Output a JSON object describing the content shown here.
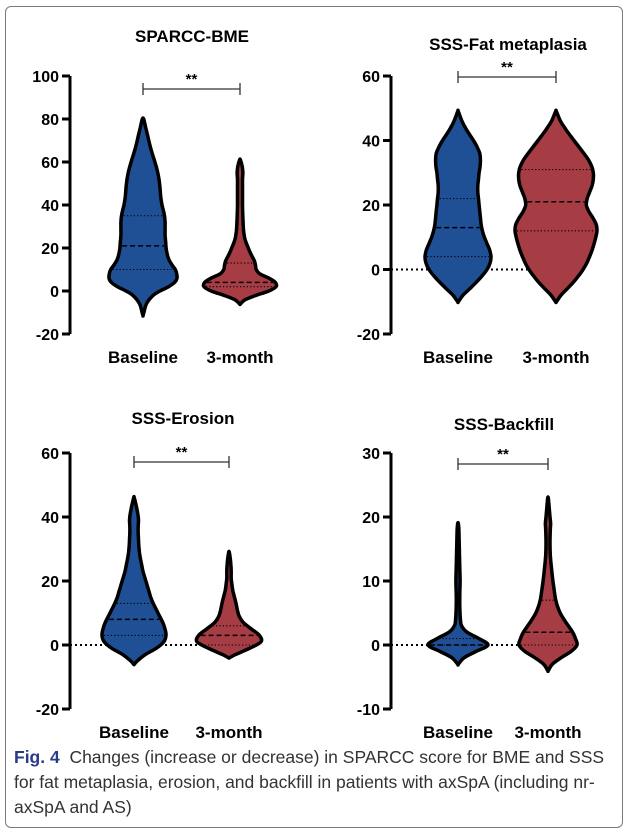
{
  "figure": {
    "caption_label": "Fig. 4",
    "caption_text": "Changes (increase or decrease) in SPARCC score for BME and SSS for fat metaplasia, erosion, and backfill in patients with axSpA (including nr-axSpA and AS)"
  },
  "colors": {
    "baseline": "#1f5096",
    "three_month": "#a63c44",
    "outline": "#000000"
  },
  "chart_data": [
    {
      "type": "violin",
      "title": "SPARCC-BME",
      "categories": [
        "Baseline",
        "3-month"
      ],
      "ylim": [
        -20,
        100
      ],
      "yticks": [
        -20,
        0,
        20,
        40,
        60,
        80,
        100
      ],
      "significance": "**",
      "zero_line": false,
      "series": [
        {
          "category": "Baseline",
          "min": -11,
          "max": 80,
          "q1": 10,
          "median": 21,
          "q3": 35,
          "density": [
            [
              -11,
              0.01
            ],
            [
              -6,
              0.1
            ],
            [
              -2,
              0.3
            ],
            [
              0,
              0.5
            ],
            [
              2,
              0.75
            ],
            [
              4,
              0.93
            ],
            [
              6,
              1.0
            ],
            [
              8,
              0.99
            ],
            [
              10,
              0.95
            ],
            [
              12,
              0.86
            ],
            [
              14,
              0.78
            ],
            [
              16,
              0.73
            ],
            [
              18,
              0.7
            ],
            [
              20,
              0.68
            ],
            [
              22,
              0.67
            ],
            [
              24,
              0.66
            ],
            [
              26,
              0.65
            ],
            [
              28,
              0.65
            ],
            [
              30,
              0.65
            ],
            [
              32,
              0.65
            ],
            [
              34,
              0.64
            ],
            [
              36,
              0.62
            ],
            [
              38,
              0.59
            ],
            [
              40,
              0.56
            ],
            [
              44,
              0.52
            ],
            [
              48,
              0.5
            ],
            [
              52,
              0.47
            ],
            [
              56,
              0.42
            ],
            [
              60,
              0.35
            ],
            [
              64,
              0.27
            ],
            [
              68,
              0.2
            ],
            [
              72,
              0.14
            ],
            [
              76,
              0.08
            ],
            [
              80,
              0.02
            ]
          ]
        },
        {
          "category": "3-month",
          "min": -6,
          "max": 61,
          "q1": 2,
          "median": 4,
          "q3": 13,
          "density": [
            [
              -6,
              0.01
            ],
            [
              -4,
              0.15
            ],
            [
              -2,
              0.45
            ],
            [
              0,
              0.8
            ],
            [
              2,
              1.0
            ],
            [
              4,
              0.98
            ],
            [
              6,
              0.8
            ],
            [
              8,
              0.55
            ],
            [
              10,
              0.45
            ],
            [
              12,
              0.43
            ],
            [
              14,
              0.4
            ],
            [
              16,
              0.34
            ],
            [
              18,
              0.28
            ],
            [
              20,
              0.23
            ],
            [
              24,
              0.14
            ],
            [
              28,
              0.1
            ],
            [
              34,
              0.08
            ],
            [
              40,
              0.07
            ],
            [
              46,
              0.07
            ],
            [
              52,
              0.07
            ],
            [
              55,
              0.08
            ],
            [
              58,
              0.06
            ],
            [
              61,
              0.01
            ]
          ]
        }
      ]
    },
    {
      "type": "violin",
      "title": "SSS-Fat metaplasia",
      "categories": [
        "Baseline",
        "3-month"
      ],
      "ylim": [
        -20,
        60
      ],
      "yticks": [
        -20,
        0,
        20,
        40,
        60
      ],
      "significance": "**",
      "zero_line": true,
      "series": [
        {
          "category": "Baseline",
          "min": -10,
          "max": 49,
          "q1": 4,
          "median": 13,
          "q3": 22,
          "density": [
            [
              -10,
              0.01
            ],
            [
              -8,
              0.15
            ],
            [
              -6,
              0.35
            ],
            [
              -4,
              0.55
            ],
            [
              -2,
              0.73
            ],
            [
              0,
              0.88
            ],
            [
              2,
              0.97
            ],
            [
              4,
              1.0
            ],
            [
              6,
              0.96
            ],
            [
              8,
              0.88
            ],
            [
              10,
              0.8
            ],
            [
              12,
              0.74
            ],
            [
              14,
              0.7
            ],
            [
              16,
              0.68
            ],
            [
              18,
              0.66
            ],
            [
              20,
              0.64
            ],
            [
              22,
              0.62
            ],
            [
              24,
              0.6
            ],
            [
              26,
              0.6
            ],
            [
              28,
              0.62
            ],
            [
              30,
              0.64
            ],
            [
              32,
              0.67
            ],
            [
              34,
              0.68
            ],
            [
              36,
              0.66
            ],
            [
              38,
              0.58
            ],
            [
              40,
              0.47
            ],
            [
              42,
              0.34
            ],
            [
              44,
              0.22
            ],
            [
              46,
              0.12
            ],
            [
              49,
              0.01
            ]
          ]
        },
        {
          "category": "3-month",
          "min": -10,
          "max": 49,
          "q1": 12,
          "median": 21,
          "q3": 31,
          "density": [
            [
              -10,
              0.01
            ],
            [
              -8,
              0.12
            ],
            [
              -6,
              0.27
            ],
            [
              -4,
              0.42
            ],
            [
              -2,
              0.55
            ],
            [
              0,
              0.66
            ],
            [
              2,
              0.75
            ],
            [
              4,
              0.82
            ],
            [
              6,
              0.88
            ],
            [
              8,
              0.93
            ],
            [
              10,
              0.97
            ],
            [
              12,
              1.0
            ],
            [
              14,
              0.98
            ],
            [
              16,
              0.9
            ],
            [
              18,
              0.8
            ],
            [
              20,
              0.74
            ],
            [
              22,
              0.76
            ],
            [
              24,
              0.82
            ],
            [
              26,
              0.88
            ],
            [
              28,
              0.91
            ],
            [
              30,
              0.91
            ],
            [
              32,
              0.87
            ],
            [
              34,
              0.79
            ],
            [
              36,
              0.68
            ],
            [
              38,
              0.56
            ],
            [
              40,
              0.44
            ],
            [
              42,
              0.32
            ],
            [
              44,
              0.21
            ],
            [
              46,
              0.11
            ],
            [
              49,
              0.01
            ]
          ]
        }
      ]
    },
    {
      "type": "violin",
      "title": "SSS-Erosion",
      "categories": [
        "Baseline",
        "3-month"
      ],
      "ylim": [
        -20,
        60
      ],
      "yticks": [
        -20,
        0,
        20,
        40,
        60
      ],
      "significance": "**",
      "zero_line": true,
      "series": [
        {
          "category": "Baseline",
          "min": -6,
          "max": 46,
          "q1": 3,
          "median": 8,
          "q3": 13,
          "density": [
            [
              -6,
              0.01
            ],
            [
              -5,
              0.1
            ],
            [
              -3,
              0.35
            ],
            [
              -1,
              0.7
            ],
            [
              1,
              0.93
            ],
            [
              3,
              1.0
            ],
            [
              5,
              0.97
            ],
            [
              7,
              0.9
            ],
            [
              9,
              0.8
            ],
            [
              11,
              0.7
            ],
            [
              13,
              0.6
            ],
            [
              15,
              0.52
            ],
            [
              17,
              0.46
            ],
            [
              19,
              0.4
            ],
            [
              21,
              0.34
            ],
            [
              23,
              0.28
            ],
            [
              25,
              0.24
            ],
            [
              27,
              0.2
            ],
            [
              29,
              0.17
            ],
            [
              31,
              0.15
            ],
            [
              33,
              0.14
            ],
            [
              35,
              0.13
            ],
            [
              37,
              0.13
            ],
            [
              39,
              0.14
            ],
            [
              41,
              0.12
            ],
            [
              43,
              0.08
            ],
            [
              46,
              0.01
            ]
          ]
        },
        {
          "category": "3-month",
          "min": -4,
          "max": 29,
          "q1": 0,
          "median": 3,
          "q3": 6,
          "density": [
            [
              -4,
              0.01
            ],
            [
              -3,
              0.2
            ],
            [
              -1,
              0.65
            ],
            [
              1,
              1.0
            ],
            [
              3,
              0.95
            ],
            [
              5,
              0.7
            ],
            [
              7,
              0.45
            ],
            [
              9,
              0.32
            ],
            [
              11,
              0.26
            ],
            [
              13,
              0.22
            ],
            [
              15,
              0.17
            ],
            [
              17,
              0.12
            ],
            [
              19,
              0.09
            ],
            [
              21,
              0.07
            ],
            [
              23,
              0.07
            ],
            [
              25,
              0.06
            ],
            [
              27,
              0.04
            ],
            [
              29,
              0.01
            ]
          ]
        }
      ]
    },
    {
      "type": "violin",
      "title": "SSS-Backfill",
      "categories": [
        "Baseline",
        "3-month"
      ],
      "ylim": [
        -10,
        30
      ],
      "yticks": [
        -10,
        0,
        10,
        20,
        30
      ],
      "significance": "**",
      "zero_line": true,
      "series": [
        {
          "category": "Baseline",
          "min": -3,
          "max": 19,
          "q1": 0,
          "median": 0,
          "q3": 1,
          "density": [
            [
              -3,
              0.01
            ],
            [
              -2,
              0.2
            ],
            [
              -1,
              0.6
            ],
            [
              0,
              1.0
            ],
            [
              1,
              0.7
            ],
            [
              2,
              0.3
            ],
            [
              3,
              0.12
            ],
            [
              4,
              0.08
            ],
            [
              6,
              0.06
            ],
            [
              8,
              0.06
            ],
            [
              10,
              0.07
            ],
            [
              12,
              0.06
            ],
            [
              14,
              0.05
            ],
            [
              16,
              0.04
            ],
            [
              18,
              0.03
            ],
            [
              19,
              0.01
            ]
          ]
        },
        {
          "category": "3-month",
          "min": -4,
          "max": 23,
          "q1": 0,
          "median": 2,
          "q3": 7,
          "density": [
            [
              -4,
              0.01
            ],
            [
              -3,
              0.15
            ],
            [
              -2,
              0.45
            ],
            [
              -1,
              0.8
            ],
            [
              0,
              1.0
            ],
            [
              1,
              0.95
            ],
            [
              2,
              0.85
            ],
            [
              3,
              0.7
            ],
            [
              4,
              0.55
            ],
            [
              5,
              0.42
            ],
            [
              6,
              0.33
            ],
            [
              7,
              0.27
            ],
            [
              8,
              0.23
            ],
            [
              9,
              0.2
            ],
            [
              10,
              0.17
            ],
            [
              12,
              0.12
            ],
            [
              14,
              0.08
            ],
            [
              16,
              0.07
            ],
            [
              18,
              0.08
            ],
            [
              19,
              0.09
            ],
            [
              20,
              0.07
            ],
            [
              22,
              0.03
            ],
            [
              23,
              0.01
            ]
          ]
        }
      ]
    }
  ]
}
